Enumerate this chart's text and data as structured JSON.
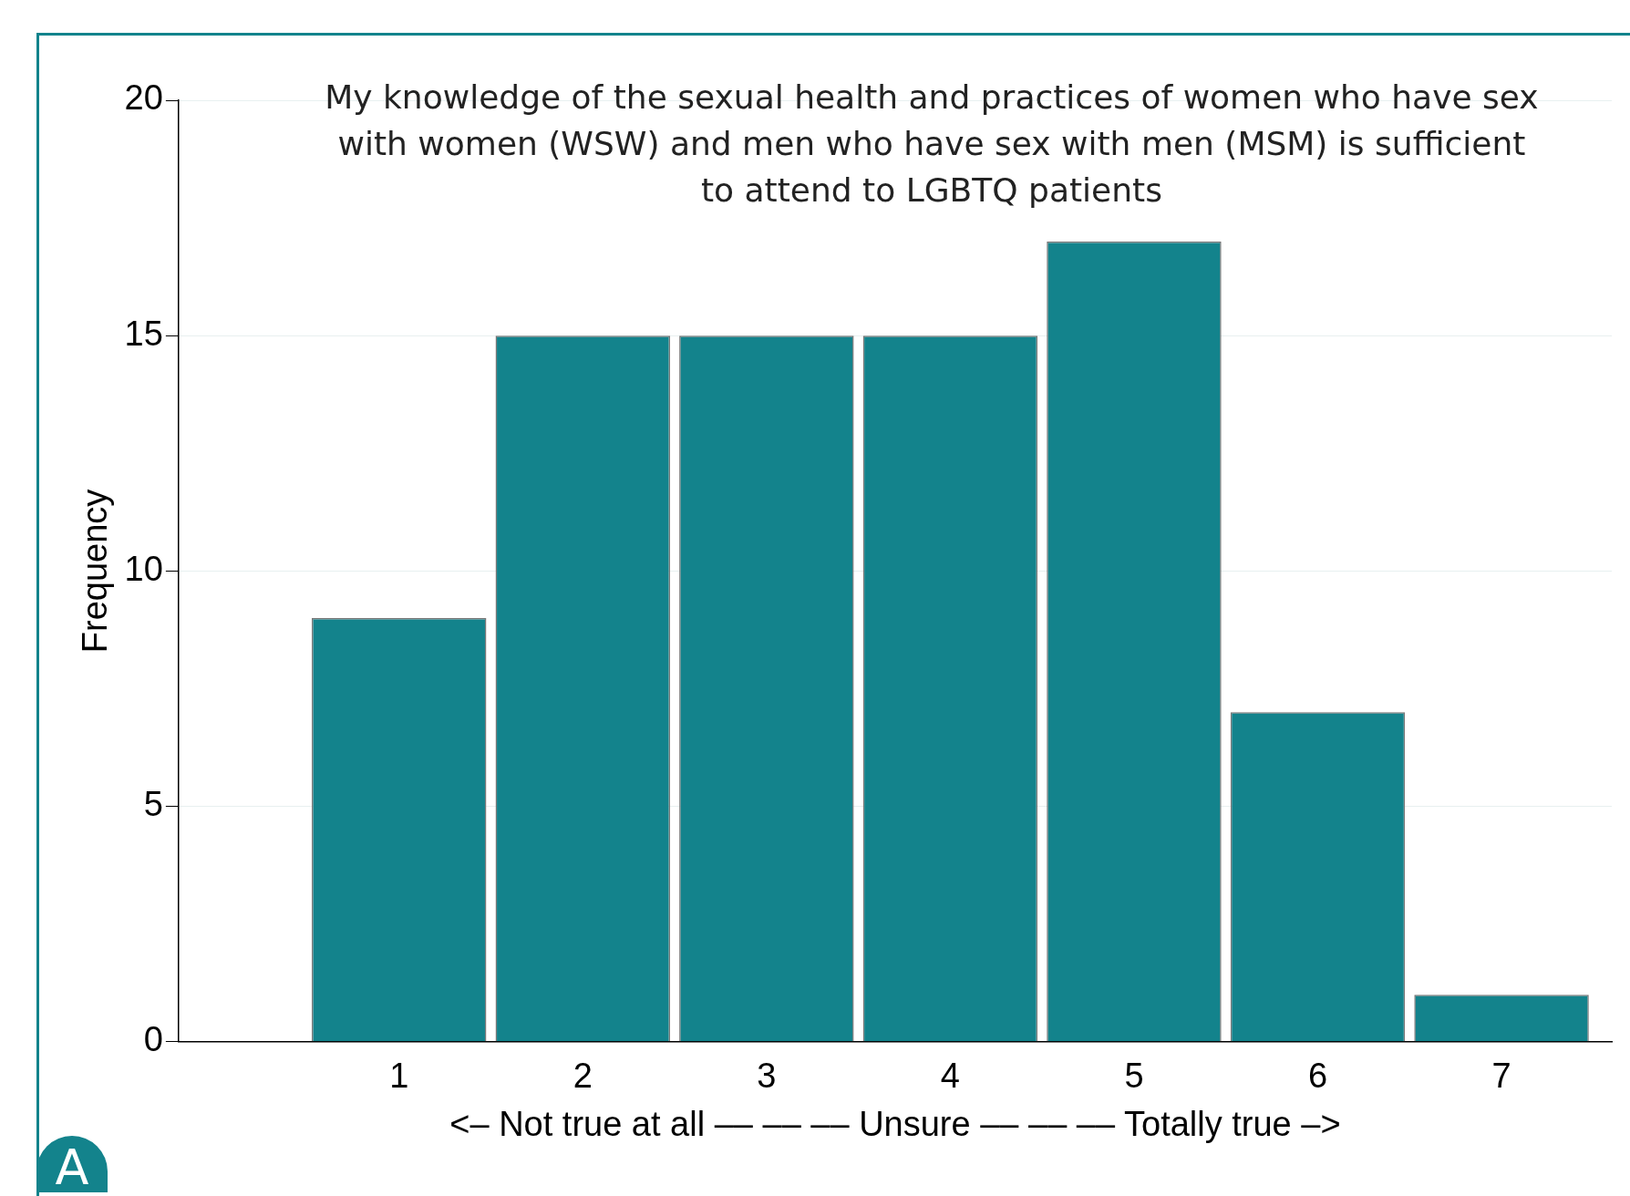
{
  "chart_data": {
    "type": "bar",
    "title": "My knowledge of the sexual health and practices of women who have sex with women (WSW) and men who have sex with men (MSM) is sufficient to attend to LGBTQ patients",
    "xlabel": "<– Not true at all –– –– –– Unsure –– –– –– Totally true –>",
    "ylabel": "Frequency",
    "x": [
      1,
      2,
      3,
      4,
      5,
      6,
      7
    ],
    "values": [
      9,
      15,
      15,
      15,
      17,
      7,
      1
    ],
    "color": "#13838c",
    "xlim": [
      -0.2,
      7.6
    ],
    "xticks": [
      1,
      2,
      3,
      4,
      5,
      6,
      7
    ],
    "ylim": [
      0,
      20
    ],
    "yticks": [
      0,
      5,
      10,
      15,
      20
    ],
    "grid": "y",
    "annotations": [
      "A"
    ]
  }
}
